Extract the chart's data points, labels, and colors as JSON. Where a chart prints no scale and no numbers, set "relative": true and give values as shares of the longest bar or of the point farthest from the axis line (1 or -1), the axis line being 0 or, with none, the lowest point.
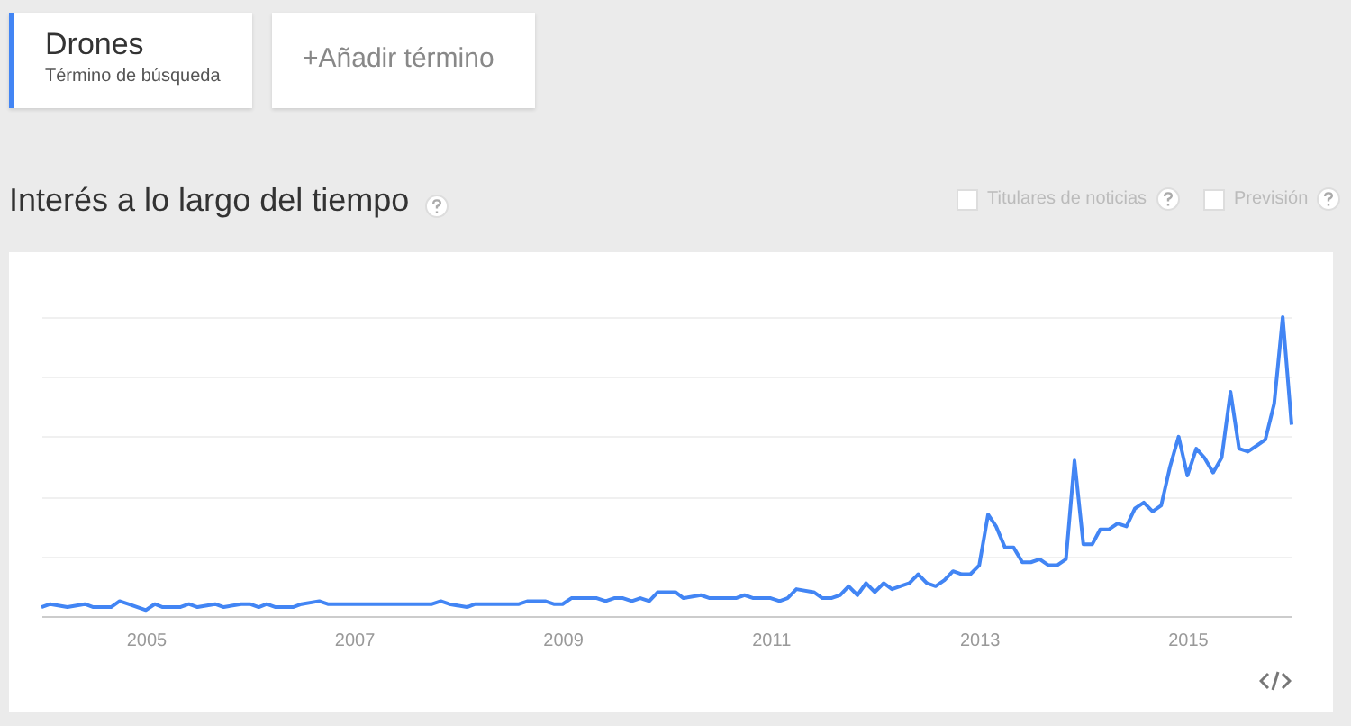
{
  "chart_data": {
    "type": "line",
    "title": "Interés a lo largo del tiempo",
    "relative": true,
    "grid": "y",
    "legend": "top left",
    "annotations": [
      "Término de búsqueda",
      "+Añadir término",
      "Titulares de noticias",
      "Previsión"
    ],
    "xlim": [
      "2004-01",
      "2016-01"
    ],
    "xticks": [
      "2005",
      "2007",
      "2009",
      "2011",
      "2013",
      "2015"
    ],
    "x": [
      "2004-01",
      "2004-02",
      "2004-04",
      "2004-06",
      "2004-07",
      "2004-09",
      "2004-10",
      "2004-11",
      "2005-01",
      "2005-02",
      "2005-03",
      "2005-05",
      "2005-06",
      "2005-07",
      "2005-09",
      "2005-10",
      "2005-12",
      "2006-01",
      "2006-02",
      "2006-03",
      "2006-04",
      "2006-06",
      "2006-07",
      "2006-09",
      "2006-10",
      "2007-10",
      "2007-11",
      "2007-12",
      "2008-02",
      "2008-03",
      "2008-08",
      "2008-09",
      "2008-11",
      "2008-12",
      "2009-01",
      "2009-02",
      "2009-05",
      "2009-06",
      "2009-07",
      "2009-08",
      "2009-09",
      "2009-10",
      "2009-11",
      "2009-12",
      "2010-02",
      "2010-03",
      "2010-05",
      "2010-06",
      "2010-09",
      "2010-10",
      "2010-11",
      "2011-01",
      "2011-02",
      "2011-03",
      "2011-04",
      "2011-06",
      "2011-07",
      "2011-08",
      "2011-09",
      "2011-10",
      "2011-11",
      "2011-12",
      "2012-01",
      "2012-02",
      "2012-03",
      "2012-05",
      "2012-06",
      "2012-07",
      "2012-08",
      "2012-09",
      "2012-10",
      "2012-11",
      "2012-12",
      "2013-01",
      "2013-02",
      "2013-03",
      "2013-04",
      "2013-05",
      "2013-06",
      "2013-07",
      "2013-08",
      "2013-09",
      "2013-10",
      "2013-11",
      "2013-12",
      "2014-01",
      "2014-02",
      "2014-03",
      "2014-04",
      "2014-05",
      "2014-06",
      "2014-07",
      "2014-08",
      "2014-09",
      "2014-10",
      "2014-11",
      "2014-12",
      "2015-01",
      "2015-02",
      "2015-03",
      "2015-04",
      "2015-05",
      "2015-06",
      "2015-07",
      "2015-08",
      "2015-09",
      "2015-10",
      "2015-11",
      "2015-12",
      "2016-01"
    ],
    "series": [
      {
        "name": "Drones",
        "color": "#4285f4",
        "values": [
          0.03,
          0.04,
          0.03,
          0.04,
          0.03,
          0.03,
          0.05,
          0.04,
          0.02,
          0.04,
          0.03,
          0.03,
          0.04,
          0.03,
          0.04,
          0.03,
          0.04,
          0.04,
          0.03,
          0.04,
          0.03,
          0.03,
          0.04,
          0.05,
          0.04,
          0.04,
          0.05,
          0.04,
          0.03,
          0.04,
          0.04,
          0.05,
          0.05,
          0.04,
          0.04,
          0.06,
          0.06,
          0.05,
          0.06,
          0.06,
          0.05,
          0.06,
          0.05,
          0.08,
          0.08,
          0.06,
          0.07,
          0.06,
          0.06,
          0.07,
          0.06,
          0.06,
          0.05,
          0.06,
          0.09,
          0.08,
          0.06,
          0.06,
          0.07,
          0.1,
          0.07,
          0.11,
          0.08,
          0.11,
          0.09,
          0.11,
          0.14,
          0.11,
          0.1,
          0.12,
          0.15,
          0.14,
          0.14,
          0.17,
          0.34,
          0.3,
          0.23,
          0.23,
          0.18,
          0.18,
          0.19,
          0.17,
          0.17,
          0.19,
          0.52,
          0.24,
          0.24,
          0.29,
          0.29,
          0.31,
          0.3,
          0.36,
          0.38,
          0.35,
          0.37,
          0.5,
          0.6,
          0.47,
          0.56,
          0.53,
          0.48,
          0.53,
          0.75,
          0.56,
          0.55,
          0.57,
          0.59,
          0.71,
          1,
          0.64
        ]
      }
    ]
  }
}
